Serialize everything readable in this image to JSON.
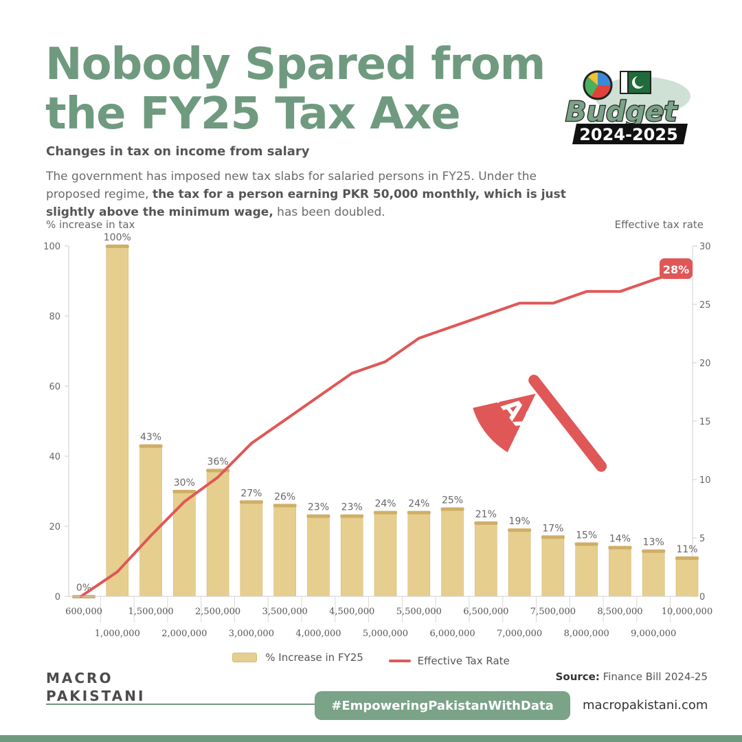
{
  "header": {
    "title_line1": "Nobody Spared from",
    "title_line2": "the FY25 Tax Axe",
    "subtitle": "Changes in tax on income from salary",
    "desc_part1": "The government has imposed new tax slabs for salaried persons in FY25. Under the proposed regime, ",
    "desc_bold": "the tax for a person earning PKR 50,000 monthly, which is just slightly above the minimum wage,",
    "desc_part2": " has been doubled."
  },
  "badge": {
    "word": "Budget",
    "year": "2024-2025"
  },
  "axe_label": "TAX",
  "chart_data": {
    "type": "bar",
    "categories": [
      "600,000",
      "1,000,000",
      "1,500,000",
      "2,000,000",
      "2,500,000",
      "3,000,000",
      "3,500,000",
      "4,000,000",
      "4,500,000",
      "5,000,000",
      "5,500,000",
      "6,000,000",
      "6,500,000",
      "7,000,000",
      "7,500,000",
      "8,000,000",
      "8,500,000",
      "9,000,000",
      "10,000,000"
    ],
    "series": [
      {
        "name": "% Increase in FY25",
        "type": "bar",
        "axis": "left",
        "values": [
          0,
          100,
          43,
          30,
          36,
          27,
          26,
          23,
          23,
          24,
          24,
          25,
          21,
          19,
          17,
          15,
          14,
          13,
          11
        ],
        "labels": [
          "0%",
          "100%",
          "43%",
          "30%",
          "36%",
          "27%",
          "26%",
          "23%",
          "23%",
          "24%",
          "24%",
          "25%",
          "21%",
          "19%",
          "17%",
          "15%",
          "14%",
          "13%",
          "11%"
        ]
      },
      {
        "name": "Effective Tax Rate",
        "type": "line",
        "axis": "right",
        "values": [
          0,
          2.1,
          5.2,
          8.1,
          10.2,
          13.1,
          15.1,
          17.1,
          19.1,
          20.1,
          22.1,
          23.1,
          24.1,
          25.1,
          25.1,
          26.1,
          26.1,
          27.1,
          28
        ],
        "end_label": "28%"
      }
    ],
    "ylabel": "% increase in tax",
    "ylabel_right": "Effective tax rate",
    "ylim": [
      0,
      100
    ],
    "ylim_right": [
      0,
      30
    ],
    "yticks": [
      "0",
      "20",
      "40",
      "60",
      "80",
      "100"
    ],
    "yticks_right": [
      "0",
      "5",
      "10",
      "15",
      "20",
      "25",
      "30"
    ],
    "legend_position": "bottom-center",
    "grid": false
  },
  "legend": {
    "bar_label": "% Increase in FY25",
    "line_label": "Effective Tax Rate"
  },
  "footer": {
    "source_label": "Source:",
    "source_value": " Finance Bill 2024-25",
    "brand_line1": "MACRO",
    "brand_line2": "PAKISTANI",
    "hashtag": "#EmpoweringPakistanWithData",
    "website": "macropakistani.com"
  },
  "colors": {
    "title": "#6f9a7f",
    "bar": "#e6cf8e",
    "line": "#e05757",
    "accent": "#7aa388"
  }
}
